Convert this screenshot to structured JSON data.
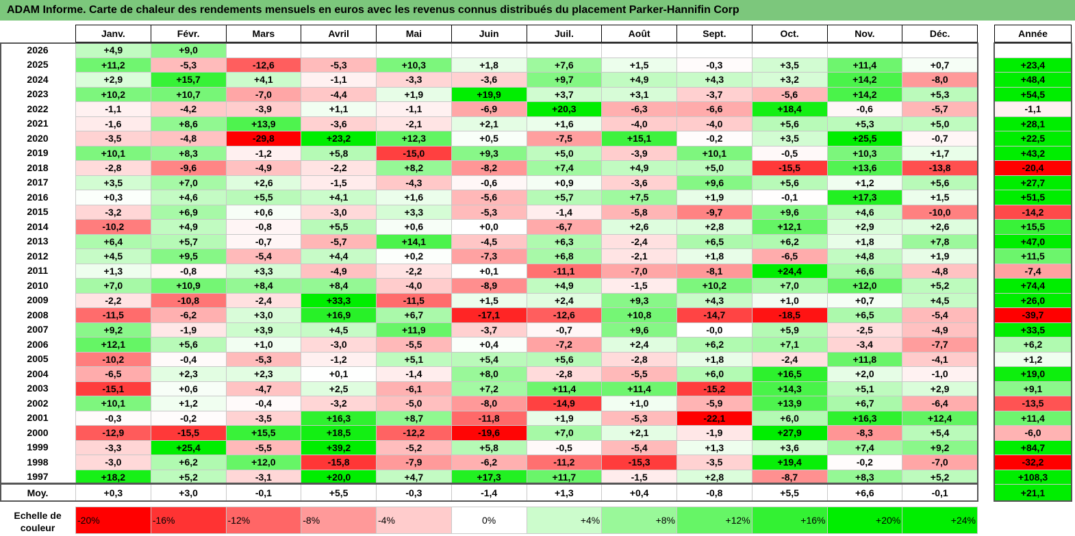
{
  "title": "ADAM Informe. Carte de chaleur des rendements mensuels en euros avec les revenus connus distribués du placement Parker-Hannifin Corp",
  "chart_data": {
    "type": "heatmap",
    "columns": [
      "Janv.",
      "Févr.",
      "Mars",
      "Avril",
      "Mai",
      "Juin",
      "Juil.",
      "Août",
      "Sept.",
      "Oct.",
      "Nov.",
      "Déc."
    ],
    "year_column": "Année",
    "rows": [
      {
        "label": "2026",
        "values": [
          "+4,9",
          "+9,0",
          "",
          "",
          "",
          "",
          "",
          "",
          "",
          "",
          "",
          ""
        ],
        "year": ""
      },
      {
        "label": "2025",
        "values": [
          "+11,2",
          "-5,3",
          "-12,6",
          "-5,3",
          "+10,3",
          "+1,8",
          "+7,6",
          "+1,5",
          "-0,3",
          "+3,5",
          "+11,4",
          "+0,7"
        ],
        "year": "+23,4"
      },
      {
        "label": "2024",
        "values": [
          "+2,9",
          "+15,7",
          "+4,1",
          "-1,1",
          "-3,3",
          "-3,6",
          "+9,7",
          "+4,9",
          "+4,3",
          "+3,2",
          "+14,2",
          "-8,0"
        ],
        "year": "+48,4"
      },
      {
        "label": "2023",
        "values": [
          "+10,2",
          "+10,7",
          "-7,0",
          "-4,4",
          "+1,9",
          "+19,9",
          "+3,7",
          "+3,1",
          "-3,7",
          "-5,6",
          "+14,2",
          "+5,3"
        ],
        "year": "+54,5"
      },
      {
        "label": "2022",
        "values": [
          "-1,1",
          "-4,2",
          "-3,9",
          "+1,1",
          "-1,1",
          "-6,9",
          "+20,3",
          "-6,3",
          "-6,6",
          "+18,4",
          "-0,6",
          "-5,7"
        ],
        "year": "-1,1"
      },
      {
        "label": "2021",
        "values": [
          "-1,6",
          "+8,6",
          "+13,9",
          "-3,6",
          "-2,1",
          "+2,1",
          "+1,6",
          "-4,0",
          "-4,0",
          "+5,6",
          "+5,3",
          "+5,0"
        ],
        "year": "+28,1"
      },
      {
        "label": "2020",
        "values": [
          "-3,5",
          "-4,8",
          "-29,8",
          "+23,2",
          "+12,3",
          "+0,5",
          "-7,5",
          "+15,1",
          "-0,2",
          "+3,5",
          "+25,5",
          "-0,7"
        ],
        "year": "+22,5"
      },
      {
        "label": "2019",
        "values": [
          "+10,1",
          "+8,3",
          "-1,2",
          "+5,8",
          "-15,0",
          "+9,3",
          "+5,0",
          "-3,9",
          "+10,1",
          "-0,5",
          "+10,3",
          "+1,7"
        ],
        "year": "+43,2"
      },
      {
        "label": "2018",
        "values": [
          "-2,8",
          "-9,6",
          "-4,9",
          "-2,2",
          "+8,2",
          "-8,2",
          "+7,4",
          "+4,9",
          "+5,0",
          "-15,5",
          "+13,6",
          "-13,8"
        ],
        "year": "-20,4"
      },
      {
        "label": "2017",
        "values": [
          "+3,5",
          "+7,0",
          "+2,6",
          "-1,5",
          "-4,3",
          "-0,6",
          "+0,9",
          "-3,6",
          "+9,6",
          "+5,6",
          "+1,2",
          "+5,6"
        ],
        "year": "+27,7"
      },
      {
        "label": "2016",
        "values": [
          "+0,3",
          "+4,6",
          "+5,5",
          "+4,1",
          "+1,6",
          "-5,6",
          "+5,7",
          "+7,5",
          "+1,9",
          "-0,1",
          "+17,3",
          "+1,5"
        ],
        "year": "+51,5"
      },
      {
        "label": "2015",
        "values": [
          "-3,2",
          "+6,9",
          "+0,6",
          "-3,0",
          "+3,3",
          "-5,3",
          "-1,4",
          "-5,8",
          "-9,7",
          "+9,6",
          "+4,6",
          "-10,0"
        ],
        "year": "-14,2"
      },
      {
        "label": "2014",
        "values": [
          "-10,2",
          "+4,9",
          "-0,8",
          "+5,5",
          "+0,6",
          "+0,0",
          "-6,7",
          "+2,6",
          "+2,8",
          "+12,1",
          "+2,9",
          "+2,6"
        ],
        "year": "+15,5"
      },
      {
        "label": "2013",
        "values": [
          "+6,4",
          "+5,7",
          "-0,7",
          "-5,7",
          "+14,1",
          "-4,5",
          "+6,3",
          "-2,4",
          "+6,5",
          "+6,2",
          "+1,8",
          "+7,8"
        ],
        "year": "+47,0"
      },
      {
        "label": "2012",
        "values": [
          "+4,5",
          "+9,5",
          "-5,4",
          "+4,4",
          "+0,2",
          "-7,3",
          "+6,8",
          "-2,1",
          "+1,8",
          "-6,5",
          "+4,8",
          "+1,9"
        ],
        "year": "+11,5"
      },
      {
        "label": "2011",
        "values": [
          "+1,3",
          "-0,8",
          "+3,3",
          "-4,9",
          "-2,2",
          "+0,1",
          "-11,1",
          "-7,0",
          "-8,1",
          "+24,4",
          "+6,6",
          "-4,8"
        ],
        "year": "-7,4"
      },
      {
        "label": "2010",
        "values": [
          "+7,0",
          "+10,9",
          "+8,4",
          "+8,4",
          "-4,0",
          "-8,9",
          "+4,9",
          "-1,5",
          "+10,2",
          "+7,0",
          "+12,0",
          "+5,2"
        ],
        "year": "+74,4"
      },
      {
        "label": "2009",
        "values": [
          "-2,2",
          "-10,8",
          "-2,4",
          "+33,3",
          "-11,5",
          "+1,5",
          "+2,4",
          "+9,3",
          "+4,3",
          "+1,0",
          "+0,7",
          "+4,5"
        ],
        "year": "+26,0"
      },
      {
        "label": "2008",
        "values": [
          "-11,5",
          "-6,2",
          "+3,0",
          "+16,9",
          "+6,7",
          "-17,1",
          "-12,6",
          "+10,8",
          "-14,7",
          "-18,5",
          "+6,5",
          "-5,4"
        ],
        "year": "-39,7"
      },
      {
        "label": "2007",
        "values": [
          "+9,2",
          "-1,9",
          "+3,9",
          "+4,5",
          "+11,9",
          "-3,7",
          "-0,7",
          "+9,6",
          "-0,0",
          "+5,9",
          "-2,5",
          "-4,9"
        ],
        "year": "+33,5"
      },
      {
        "label": "2006",
        "values": [
          "+12,1",
          "+5,6",
          "+1,0",
          "-3,0",
          "-5,5",
          "+0,4",
          "-7,2",
          "+2,4",
          "+6,2",
          "+7,1",
          "-3,4",
          "-7,7"
        ],
        "year": "+6,2"
      },
      {
        "label": "2005",
        "values": [
          "-10,2",
          "-0,4",
          "-5,3",
          "-1,2",
          "+5,1",
          "+5,4",
          "+5,6",
          "-2,8",
          "+1,8",
          "-2,4",
          "+11,8",
          "-4,1"
        ],
        "year": "+1,2"
      },
      {
        "label": "2004",
        "values": [
          "-6,5",
          "+2,3",
          "+2,3",
          "+0,1",
          "-1,4",
          "+8,0",
          "-2,8",
          "-5,5",
          "+6,0",
          "+16,5",
          "+2,0",
          "-1,0"
        ],
        "year": "+19,0"
      },
      {
        "label": "2003",
        "values": [
          "-15,1",
          "+0,6",
          "-4,7",
          "+2,5",
          "-6,1",
          "+7,2",
          "+11,4",
          "+11,4",
          "-15,2",
          "+14,3",
          "+5,1",
          "+2,9"
        ],
        "year": "+9,1"
      },
      {
        "label": "2002",
        "values": [
          "+10,1",
          "+1,2",
          "-0,4",
          "-3,2",
          "-5,0",
          "-8,0",
          "-14,9",
          "+1,0",
          "-5,9",
          "+13,9",
          "+6,7",
          "-6,4"
        ],
        "year": "-13,5"
      },
      {
        "label": "2001",
        "values": [
          "-0,3",
          "-0,2",
          "-3,5",
          "+16,3",
          "+8,7",
          "-11,8",
          "+1,9",
          "-5,3",
          "-22,1",
          "+6,0",
          "+16,3",
          "+12,4"
        ],
        "year": "+11,4"
      },
      {
        "label": "2000",
        "values": [
          "-12,9",
          "-15,5",
          "+15,5",
          "+18,5",
          "-12,2",
          "-19,6",
          "+7,0",
          "+2,1",
          "-1,9",
          "+27,9",
          "-8,3",
          "+5,4"
        ],
        "year": "-6,0"
      },
      {
        "label": "1999",
        "values": [
          "-3,3",
          "+25,4",
          "-5,5",
          "+39,2",
          "-5,2",
          "+5,8",
          "-0,5",
          "-5,4",
          "+1,3",
          "+3,6",
          "+7,4",
          "+9,2"
        ],
        "year": "+84,7"
      },
      {
        "label": "1998",
        "values": [
          "-3,0",
          "+6,2",
          "+12,0",
          "-15,8",
          "-7,9",
          "-6,2",
          "-11,2",
          "-15,3",
          "-3,5",
          "+19,4",
          "-0,2",
          "-7,0"
        ],
        "year": "-32,2"
      },
      {
        "label": "1997",
        "values": [
          "+18,2",
          "+5,2",
          "-3,1",
          "+20,0",
          "+4,7",
          "+17,3",
          "+11,7",
          "-1,5",
          "+2,8",
          "-8,7",
          "+8,3",
          "+5,2"
        ],
        "year": "+108,3"
      }
    ],
    "average": {
      "label": "Moy.",
      "values": [
        "+0,3",
        "+3,0",
        "-0,1",
        "+5,5",
        "-0,3",
        "-1,4",
        "+1,3",
        "+0,4",
        "-0,8",
        "+5,5",
        "+6,6",
        "-0,1"
      ],
      "year": "+21,1"
    },
    "scale": {
      "label_line1": "Echelle de",
      "label_line2": "couleur",
      "labels": [
        "-20%",
        "-16%",
        "-12%",
        "-8%",
        "-4%",
        "0%",
        "+4%",
        "+8%",
        "+12%",
        "+16%",
        "+20%",
        "+24%"
      ],
      "levels": [
        -20,
        -16,
        -12,
        -8,
        -4,
        0,
        4,
        8,
        12,
        16,
        20,
        24
      ]
    },
    "colors": {
      "negative": "#ff0000",
      "neutral": "#ffffff",
      "positive": "#00ee00",
      "title_bg": "#7cc77c"
    }
  }
}
